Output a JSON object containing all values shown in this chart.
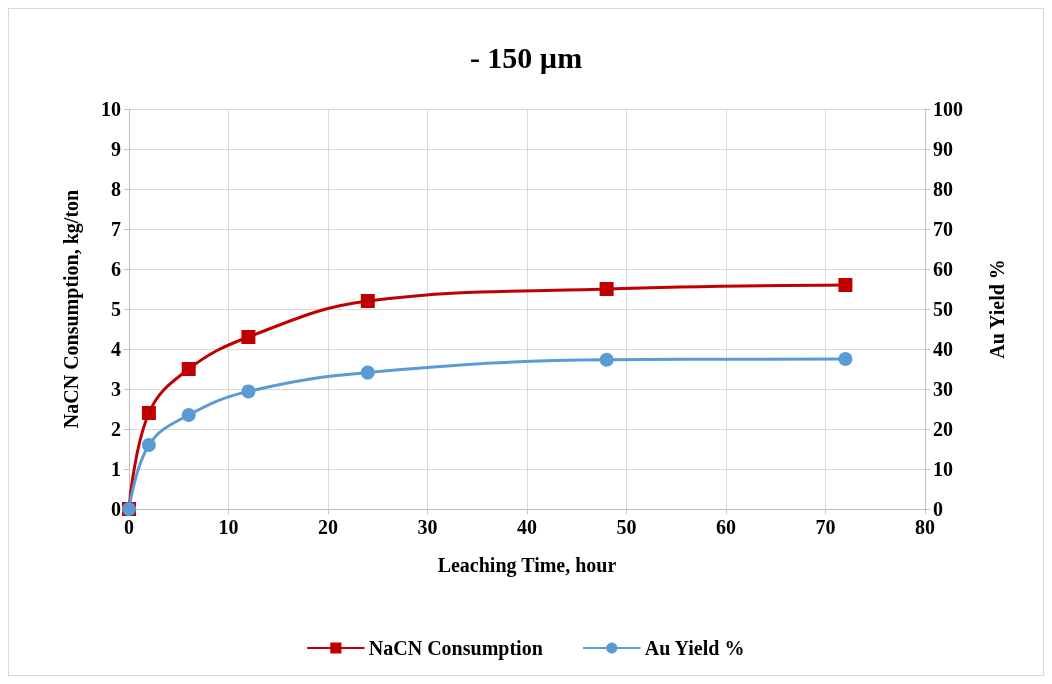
{
  "chart_data": {
    "type": "line",
    "title": "- 150 µm",
    "xlabel": "Leaching Time, hour",
    "ylabel": "NaCN Consumption, kg/ton",
    "y2label": "Au Yield %",
    "x": [
      0,
      2,
      6,
      12,
      24,
      48,
      72
    ],
    "series": [
      {
        "name": "NaCN Consumption",
        "color": "#c00000",
        "marker": "square",
        "values": [
          0,
          2.4,
          3.5,
          4.3,
          5.2,
          5.5,
          5.6
        ]
      },
      {
        "name": "Au Yield %",
        "color": "#5b9bd5",
        "marker": "circle",
        "axis": "y2",
        "values": [
          0,
          16,
          23.5,
          29.4,
          34.1,
          37.3,
          37.5
        ]
      }
    ],
    "xlim": [
      0,
      80
    ],
    "xticks": [
      0,
      10,
      20,
      30,
      40,
      50,
      60,
      70,
      80
    ],
    "ylim": [
      0,
      10
    ],
    "yticks": [
      0,
      1,
      2,
      3,
      4,
      5,
      6,
      7,
      8,
      9,
      10
    ],
    "y2lim": [
      0,
      100
    ],
    "y2ticks": [
      0,
      10,
      20,
      30,
      40,
      50,
      60,
      70,
      80,
      90,
      100
    ],
    "grid": true,
    "legend": "bottom",
    "line_style": "solid"
  }
}
